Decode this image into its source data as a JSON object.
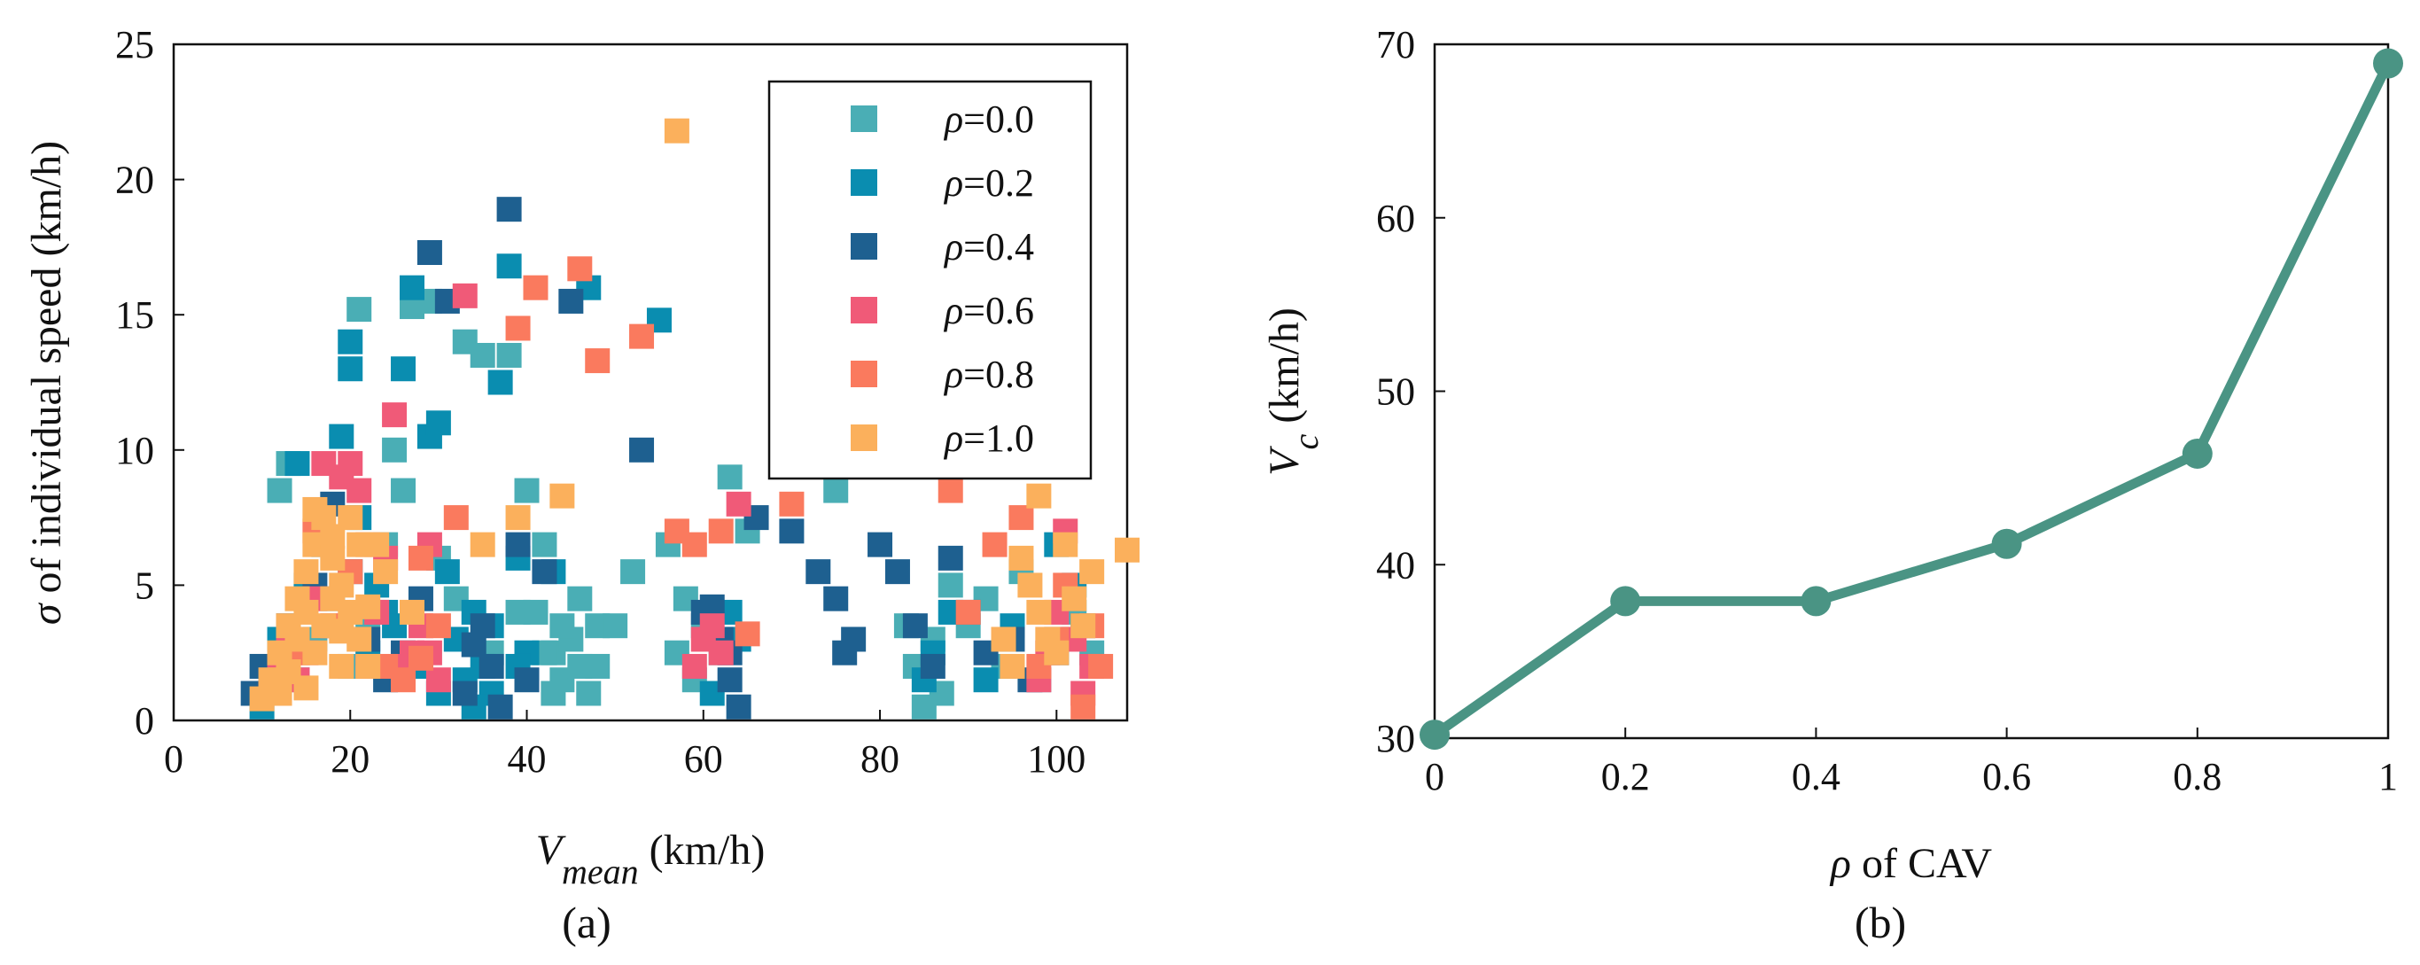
{
  "chart_data": [
    {
      "type": "scatter",
      "panel_label": "(a)",
      "xlabel": {
        "var": "V",
        "sub": "mean",
        "unit": " (km/h)"
      },
      "ylabel": {
        "sym": "σ",
        "rest": " of individual speed (km/h)"
      },
      "xlim": [
        0,
        108
      ],
      "ylim": [
        0,
        25
      ],
      "xticks": [
        "0",
        "20",
        "40",
        "60",
        "80",
        "100"
      ],
      "yticks": [
        "0",
        "5",
        "10",
        "15",
        "20",
        "25"
      ],
      "legend_position": "top-right",
      "series": [
        {
          "name": {
            "sym": "ρ",
            "rest": "=0.0"
          },
          "color": "#4aaeb5",
          "points": [
            [
              14,
              1.5
            ],
            [
              16,
              3.0
            ],
            [
              18,
              4.5
            ],
            [
              20,
              2.0
            ],
            [
              22,
              3.5
            ],
            [
              24,
              6.5
            ],
            [
              25,
              10.0
            ],
            [
              26,
              8.5
            ],
            [
              27,
              15.3
            ],
            [
              29,
              15.5
            ],
            [
              30,
              6.0
            ],
            [
              32,
              4.5
            ],
            [
              33,
              14.0
            ],
            [
              35,
              13.5
            ],
            [
              38,
              13.5
            ],
            [
              40,
              8.5
            ],
            [
              41,
              4.0
            ],
            [
              42,
              6.5
            ],
            [
              43,
              2.5
            ],
            [
              44,
              1.5
            ],
            [
              45,
              3.0
            ],
            [
              46,
              2.0
            ],
            [
              47,
              1.0
            ],
            [
              48,
              3.5
            ],
            [
              50,
              3.5
            ],
            [
              52,
              5.5
            ],
            [
              56,
              6.5
            ],
            [
              58,
              4.5
            ],
            [
              60,
              3.5
            ],
            [
              62,
              2.5
            ],
            [
              63,
              9.0
            ],
            [
              65,
              7.0
            ],
            [
              75,
              8.5
            ],
            [
              84,
              2.0
            ],
            [
              85,
              0.5
            ],
            [
              86,
              3.0
            ],
            [
              88,
              5.0
            ],
            [
              90,
              3.5
            ],
            [
              92,
              4.5
            ],
            [
              94,
              2.0
            ],
            [
              96,
              5.5
            ],
            [
              98,
              1.5
            ],
            [
              100,
              3.0
            ],
            [
              102,
              4.0
            ],
            [
              104,
              2.5
            ],
            [
              21,
              15.2
            ],
            [
              12,
              8.5
            ],
            [
              13,
              9.5
            ],
            [
              11,
              1.5
            ],
            [
              42,
              2.5
            ],
            [
              44,
              3.5
            ],
            [
              46,
              4.5
            ],
            [
              43,
              1.0
            ],
            [
              48,
              2.0
            ],
            [
              39,
              4.0
            ],
            [
              36,
              2.5
            ],
            [
              57,
              2.5
            ],
            [
              59,
              1.5
            ],
            [
              83,
              3.5
            ],
            [
              87,
              1.0
            ]
          ]
        },
        {
          "name": {
            "sym": "ρ",
            "rest": "=0.2"
          },
          "color": "#0a8db0",
          "points": [
            [
              10,
              0.5
            ],
            [
              11,
              1.5
            ],
            [
              12,
              3.0
            ],
            [
              14,
              9.5
            ],
            [
              15,
              5.0
            ],
            [
              17,
              6.5
            ],
            [
              19,
              10.5
            ],
            [
              20,
              14.0
            ],
            [
              20,
              13.0
            ],
            [
              21,
              7.5
            ],
            [
              22,
              2.5
            ],
            [
              24,
              4.0
            ],
            [
              26,
              13.0
            ],
            [
              27,
              16.0
            ],
            [
              29,
              10.5
            ],
            [
              30,
              11.0
            ],
            [
              31,
              5.5
            ],
            [
              32,
              3.0
            ],
            [
              33,
              1.5
            ],
            [
              34,
              4.0
            ],
            [
              35,
              2.0
            ],
            [
              36,
              1.0
            ],
            [
              37,
              12.5
            ],
            [
              38,
              16.8
            ],
            [
              39,
              6.0
            ],
            [
              40,
              2.5
            ],
            [
              43,
              5.5
            ],
            [
              47,
              16.0
            ],
            [
              55,
              14.8
            ],
            [
              30,
              1.0
            ],
            [
              28,
              2.0
            ],
            [
              25,
              3.5
            ],
            [
              23,
              5.0
            ],
            [
              85,
              1.5
            ],
            [
              86,
              2.5
            ],
            [
              88,
              4.0
            ],
            [
              92,
              1.5
            ],
            [
              95,
              3.5
            ],
            [
              100,
              6.5
            ],
            [
              102,
              5.0
            ],
            [
              63,
              4.0
            ],
            [
              64,
              3.0
            ],
            [
              61,
              1.0
            ],
            [
              34,
              0.5
            ],
            [
              36,
              3.5
            ],
            [
              39,
              2.0
            ]
          ]
        },
        {
          "name": {
            "sym": "ρ",
            "rest": "=0.4"
          },
          "color": "#1e6090",
          "points": [
            [
              9,
              1.0
            ],
            [
              10,
              2.0
            ],
            [
              13,
              3.5
            ],
            [
              16,
              5.0
            ],
            [
              18,
              8.0
            ],
            [
              20,
              5.5
            ],
            [
              22,
              3.0
            ],
            [
              24,
              1.5
            ],
            [
              26,
              2.5
            ],
            [
              28,
              4.5
            ],
            [
              29,
              17.3
            ],
            [
              31,
              15.5
            ],
            [
              33,
              1.0
            ],
            [
              35,
              3.5
            ],
            [
              36,
              2.0
            ],
            [
              37,
              0.5
            ],
            [
              38,
              18.9
            ],
            [
              39,
              6.5
            ],
            [
              40,
              1.5
            ],
            [
              42,
              5.5
            ],
            [
              45,
              15.5
            ],
            [
              53,
              10.0
            ],
            [
              60,
              4.0
            ],
            [
              62,
              3.0
            ],
            [
              63,
              1.5
            ],
            [
              64,
              0.5
            ],
            [
              66,
              7.5
            ],
            [
              70,
              7.0
            ],
            [
              73,
              5.5
            ],
            [
              75,
              4.5
            ],
            [
              77,
              3.0
            ],
            [
              80,
              6.5
            ],
            [
              82,
              5.5
            ],
            [
              84,
              3.5
            ],
            [
              86,
              2.0
            ],
            [
              88,
              6.0
            ],
            [
              90,
              4.0
            ],
            [
              92,
              2.5
            ],
            [
              95,
              3.0
            ],
            [
              97,
              1.5
            ],
            [
              100,
              2.5
            ],
            [
              103,
              3.5
            ],
            [
              76,
              2.5
            ],
            [
              61,
              4.2
            ],
            [
              63,
              2.5
            ],
            [
              34,
              2.8
            ]
          ]
        },
        {
          "name": {
            "sym": "ρ",
            "rest": "=0.6"
          },
          "color": "#f05a78",
          "points": [
            [
              11,
              1.0
            ],
            [
              12,
              2.0
            ],
            [
              13,
              3.0
            ],
            [
              14,
              1.5
            ],
            [
              15,
              2.5
            ],
            [
              16,
              4.5
            ],
            [
              17,
              9.5
            ],
            [
              18,
              3.5
            ],
            [
              19,
              9.0
            ],
            [
              20,
              9.5
            ],
            [
              21,
              8.5
            ],
            [
              22,
              2.0
            ],
            [
              23,
              4.0
            ],
            [
              24,
              6.0
            ],
            [
              25,
              11.3
            ],
            [
              27,
              2.5
            ],
            [
              28,
              3.5
            ],
            [
              29,
              6.5
            ],
            [
              30,
              1.5
            ],
            [
              33,
              15.7
            ],
            [
              59,
              2.0
            ],
            [
              60,
              3.0
            ],
            [
              61,
              3.5
            ],
            [
              62,
              2.5
            ],
            [
              64,
              8.0
            ],
            [
              98,
              1.5
            ],
            [
              99,
              2.5
            ],
            [
              100,
              4.0
            ],
            [
              101,
              7.0
            ],
            [
              102,
              3.0
            ],
            [
              103,
              1.0
            ],
            [
              104,
              2.0
            ],
            [
              26,
              2.0
            ],
            [
              29,
              2.5
            ]
          ]
        },
        {
          "name": {
            "sym": "ρ",
            "rest": "=0.8"
          },
          "color": "#fa7a5e",
          "points": [
            [
              12,
              1.5
            ],
            [
              14,
              2.5
            ],
            [
              16,
              7.0
            ],
            [
              18,
              3.5
            ],
            [
              20,
              5.5
            ],
            [
              22,
              6.5
            ],
            [
              24,
              2.0
            ],
            [
              26,
              1.5
            ],
            [
              28,
              6.0
            ],
            [
              30,
              3.5
            ],
            [
              32,
              7.5
            ],
            [
              39,
              14.5
            ],
            [
              41,
              16.0
            ],
            [
              46,
              16.7
            ],
            [
              48,
              13.3
            ],
            [
              53,
              14.2
            ],
            [
              57,
              7.0
            ],
            [
              59,
              6.5
            ],
            [
              62,
              7.0
            ],
            [
              65,
              3.2
            ],
            [
              70,
              8.0
            ],
            [
              76,
              12.5
            ],
            [
              88,
              8.5
            ],
            [
              90,
              4.0
            ],
            [
              93,
              6.5
            ],
            [
              96,
              7.5
            ],
            [
              98,
              2.0
            ],
            [
              100,
              3.0
            ],
            [
              101,
              5.0
            ],
            [
              103,
              0.5
            ],
            [
              104,
              3.5
            ],
            [
              105,
              2.0
            ],
            [
              28,
              2.3
            ]
          ]
        },
        {
          "name": {
            "sym": "ρ",
            "rest": "=1.0"
          },
          "color": "#fbb05c",
          "points": [
            [
              57,
              21.8
            ],
            [
              10,
              0.8
            ],
            [
              11,
              1.5
            ],
            [
              12,
              2.5
            ],
            [
              13,
              3.5
            ],
            [
              14,
              4.5
            ],
            [
              15,
              5.5
            ],
            [
              16,
              6.5
            ],
            [
              17,
              7.5
            ],
            [
              18,
              6.0
            ],
            [
              19,
              5.0
            ],
            [
              20,
              4.0
            ],
            [
              21,
              3.0
            ],
            [
              22,
              2.0
            ],
            [
              23,
              6.5
            ],
            [
              24,
              5.5
            ],
            [
              14,
              3.0
            ],
            [
              15,
              4.0
            ],
            [
              16,
              2.5
            ],
            [
              17,
              3.5
            ],
            [
              18,
              4.5
            ],
            [
              19,
              2.0
            ],
            [
              20,
              7.5
            ],
            [
              21,
              6.5
            ],
            [
              13,
              1.8
            ],
            [
              16,
              7.8
            ],
            [
              18,
              6.8
            ],
            [
              22,
              4.2
            ],
            [
              27,
              4.0
            ],
            [
              35,
              6.5
            ],
            [
              39,
              7.5
            ],
            [
              44,
              8.3
            ],
            [
              96,
              6.0
            ],
            [
              97,
              5.0
            ],
            [
              98,
              4.0
            ],
            [
              99,
              3.0
            ],
            [
              100,
              2.5
            ],
            [
              101,
              6.5
            ],
            [
              102,
              4.5
            ],
            [
              103,
              3.5
            ],
            [
              104,
              5.5
            ],
            [
              108,
              6.3
            ],
            [
              98,
              8.3
            ],
            [
              94,
              3.0
            ],
            [
              95,
              2.0
            ],
            [
              12,
              1.0
            ],
            [
              15,
              1.2
            ],
            [
              19,
              3.3
            ]
          ]
        }
      ]
    },
    {
      "type": "line",
      "panel_label": "(b)",
      "xlabel": {
        "sym": "ρ",
        "rest": " of CAV"
      },
      "ylabel": {
        "var": "V",
        "sub": "c",
        "unit": " (km/h)"
      },
      "xlim": [
        0,
        1
      ],
      "ylim": [
        30,
        70
      ],
      "xticks": [
        "0",
        "0.2",
        "0.4",
        "0.6",
        "0.8",
        "1"
      ],
      "yticks": [
        "30",
        "40",
        "50",
        "60",
        "70"
      ],
      "series": [
        {
          "color": "#4a9484",
          "x": [
            0,
            0.2,
            0.4,
            0.6,
            0.8,
            1.0
          ],
          "y": [
            30.2,
            37.9,
            37.9,
            41.2,
            46.4,
            68.9
          ]
        }
      ]
    }
  ]
}
